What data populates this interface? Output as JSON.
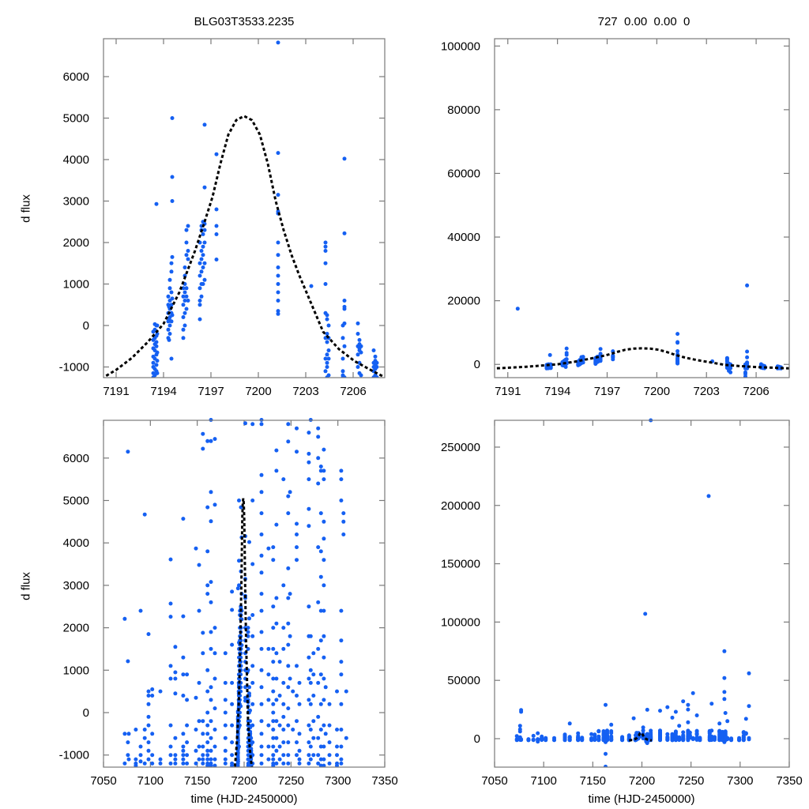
{
  "chart_data": {
    "type": "scatter",
    "title": "BLG03T3533.2235",
    "subtitle": "727  0.00  0.00  0",
    "ylabel": "d flux",
    "xlabel": "time (HJD-2450000)",
    "colors": {
      "points": "#1560f2",
      "model": "#000000",
      "frame": "#7a7a7a"
    },
    "model_curve": [
      [
        7187,
        -1500
      ],
      [
        7188,
        -1380
      ],
      [
        7189,
        -1250
      ],
      [
        7190.2,
        -1250
      ],
      [
        7191,
        -1070
      ],
      [
        7192,
        -780
      ],
      [
        7193,
        -400
      ],
      [
        7194,
        40
      ],
      [
        7195,
        800
      ],
      [
        7196,
        1810
      ],
      [
        7196.6,
        2500
      ],
      [
        7197.1,
        3100
      ],
      [
        7197.6,
        3900
      ],
      [
        7198.1,
        4600
      ],
      [
        7198.6,
        4950
      ],
      [
        7199.1,
        5050
      ],
      [
        7199.6,
        4950
      ],
      [
        7200.1,
        4600
      ],
      [
        7200.6,
        3900
      ],
      [
        7201.1,
        3000
      ],
      [
        7201.6,
        2300
      ],
      [
        7202.1,
        1700
      ],
      [
        7202.6,
        1200
      ],
      [
        7203.1,
        750
      ],
      [
        7204.1,
        -150
      ],
      [
        7205.1,
        -570
      ],
      [
        7206.1,
        -860
      ],
      [
        7207.1,
        -1070
      ],
      [
        7208,
        -1250
      ],
      [
        7209,
        -1350
      ],
      [
        7210,
        -1450
      ]
    ],
    "observations": [
      {
        "t": 7072.7,
        "flux": [
          -1200,
          -500,
          2210
        ]
      },
      {
        "t": 7076,
        "flux": [
          6150,
          1210,
          -700,
          -1000,
          8000,
          11000
        ]
      },
      {
        "t": 7077,
        "flux": [
          24500,
          23000,
          -500,
          -1100
        ]
      },
      {
        "t": 7084.5,
        "flux": [
          -1100,
          -1200,
          -1250,
          -400
        ]
      },
      {
        "t": 7089.6,
        "flux": [
          2400,
          -1000,
          -1150,
          -800
        ]
      },
      {
        "t": 7094,
        "flux": [
          4670,
          -600,
          -400,
          -1200,
          -2500
        ]
      },
      {
        "t": 7098,
        "flux": [
          1850,
          500,
          -900,
          -1100,
          -700,
          -300,
          -100,
          200,
          400
        ]
      },
      {
        "t": 7102,
        "flux": [
          550,
          400,
          -1000,
          -1200,
          -500
        ]
      },
      {
        "t": 7110.7,
        "flux": [
          500,
          -1100,
          -1200
        ]
      },
      {
        "t": 7121.6,
        "flux": [
          3610,
          2570,
          2260,
          1100,
          800,
          -300,
          -800,
          -1000,
          -1200
        ]
      },
      {
        "t": 7126.6,
        "flux": [
          1550,
          950,
          800,
          450,
          -600,
          -1000,
          -1100,
          -1200,
          13000
        ]
      },
      {
        "t": 7135,
        "flux": [
          4570,
          2270,
          1300,
          900,
          400,
          -500,
          -800,
          -900,
          -1000,
          -1100,
          -1200
        ]
      },
      {
        "t": 7139,
        "flux": [
          900,
          300,
          -300,
          -700,
          -1000,
          -1200
        ]
      },
      {
        "t": 7148.6,
        "flux": [
          3870,
          350,
          -400,
          -900,
          -1200
        ]
      },
      {
        "t": 7152,
        "flux": [
          3480,
          2400,
          700,
          -200,
          -800,
          -1100
        ]
      },
      {
        "t": 7156,
        "flux": [
          6570,
          6220,
          1880,
          1400,
          -200,
          -500,
          -800,
          -1000,
          -1100,
          -1200
        ]
      },
      {
        "t": 7161,
        "flux": [
          6400,
          4840,
          3800,
          3000,
          2800,
          1000,
          500,
          0,
          -300,
          -500,
          -700,
          -900,
          -1000,
          -1100,
          -1200,
          -1250
        ]
      },
      {
        "t": 7163,
        "flux": [
          29000,
          -13000,
          -24000,
          -3000
        ]
      },
      {
        "t": 7164.6,
        "flux": [
          6900,
          6400,
          5200,
          4510,
          3080,
          2600,
          1900,
          1500,
          600,
          300,
          -200,
          -600,
          -900,
          -1100,
          -1200,
          -1250
        ]
      },
      {
        "t": 7168.8,
        "flux": [
          6450,
          4900,
          2000,
          1400,
          800,
          100,
          -400,
          -800,
          -1100,
          -1250,
          12000
        ]
      },
      {
        "t": 7180,
        "flux": [
          1400,
          700,
          300,
          0,
          -300,
          -600,
          -900,
          -1100,
          -1200
        ]
      },
      {
        "t": 7187,
        "flux": [
          2850,
          2420,
          1600,
          700,
          200,
          -300,
          -700,
          -1000,
          -1200,
          -1250
        ]
      },
      {
        "t": 7191.6,
        "flux": [
          17500
        ]
      },
      {
        "t": 7193.35,
        "flux": [
          -1250,
          -1150,
          -1000,
          -900,
          -750,
          -550,
          -350,
          -150
        ]
      },
      {
        "t": 7193.45,
        "flux": [
          -1200,
          -1050,
          -800,
          -600,
          -450,
          -300,
          -100,
          30
        ]
      },
      {
        "t": 7193.55,
        "flux": [
          -1100,
          -950,
          -700,
          -500,
          -400,
          -250,
          0,
          2930
        ]
      },
      {
        "t": 7193.6,
        "flux": [
          -1150,
          -850,
          -650,
          -200,
          0
        ]
      },
      {
        "t": 7194.3,
        "flux": [
          -300,
          -100,
          100,
          300,
          500,
          700
        ]
      },
      {
        "t": 7194.35,
        "flux": [
          -350,
          150,
          450
        ]
      },
      {
        "t": 7194.4,
        "flux": [
          -200,
          0,
          200,
          400,
          600,
          900,
          1100
        ]
      },
      {
        "t": 7194.5,
        "flux": [
          -800,
          100,
          300,
          500,
          800,
          1300,
          1500
        ]
      },
      {
        "t": 7194.55,
        "flux": [
          250,
          650,
          1650,
          3000,
          3580,
          5000
        ]
      },
      {
        "t": 7195.25,
        "flux": [
          -300,
          -100,
          200,
          500,
          700,
          900
        ]
      },
      {
        "t": 7195.35,
        "flux": [
          0,
          300,
          600,
          800,
          1000,
          1200,
          1400
        ]
      },
      {
        "t": 7195.45,
        "flux": [
          400,
          700,
          900,
          1700,
          2000,
          2300
        ]
      },
      {
        "t": 7195.55,
        "flux": [
          600,
          1600,
          1800,
          2400
        ]
      },
      {
        "t": 7196.3,
        "flux": [
          150,
          500,
          600,
          900,
          1200,
          1500,
          2000
        ]
      },
      {
        "t": 7196.4,
        "flux": [
          700,
          1000,
          1300,
          1600,
          1800,
          2300,
          2400
        ]
      },
      {
        "t": 7196.5,
        "flux": [
          1000,
          1400,
          1700,
          1900,
          2200,
          2500
        ]
      },
      {
        "t": 7196.6,
        "flux": [
          1100,
          1500,
          2000,
          2300,
          2450,
          3330,
          4840
        ]
      },
      {
        "t": 7197.35,
        "flux": [
          1590,
          2200,
          2400,
          2800,
          4130
        ]
      },
      {
        "t": 7201.25,
        "flux": [
          280,
          350,
          600,
          800,
          1000,
          1200,
          1400,
          1700,
          2000,
          2700,
          2750,
          3150,
          4160,
          6820,
          7000,
          9600
        ]
      },
      {
        "t": 7203.35,
        "flux": [
          950,
          107000
        ]
      },
      {
        "t": 7204.25,
        "flux": [
          1000,
          1500,
          1800,
          1900,
          2000,
          300,
          -300,
          -800,
          -1100
        ]
      },
      {
        "t": 7204.35,
        "flux": [
          250,
          150,
          -200,
          -400,
          -700,
          -900,
          -1000,
          -1250,
          -2000
        ]
      },
      {
        "t": 7204.45,
        "flux": [
          0,
          -300,
          -600,
          -800,
          -1200,
          -2500
        ]
      },
      {
        "t": 7205.35,
        "flux": [
          0,
          -300,
          -800,
          -1100,
          -1200,
          -1250,
          -2500,
          -3000,
          -3800
        ]
      },
      {
        "t": 7205.45,
        "flux": [
          2220,
          4020,
          400,
          450,
          600,
          50,
          -500,
          -1250,
          24800
        ]
      },
      {
        "t": 7206.3,
        "flux": [
          50,
          -200,
          -500,
          -700,
          -1000
        ]
      },
      {
        "t": 7206.4,
        "flux": [
          -350,
          -450,
          -550,
          -600,
          -900,
          -1150
        ]
      },
      {
        "t": 7206.5,
        "flux": [
          -500,
          -650,
          -1200
        ]
      },
      {
        "t": 7207.3,
        "flux": [
          -600,
          -900,
          -1000,
          -1100,
          -1250
        ]
      },
      {
        "t": 7207.4,
        "flux": [
          -750,
          -850,
          -950,
          -1050,
          -1200
        ]
      },
      {
        "t": 7207.5,
        "flux": [
          -900,
          -1000,
          -1250
        ]
      },
      {
        "t": 7209,
        "flux": [
          273000,
          6800,
          5000,
          3500,
          2300,
          1800,
          1100,
          700,
          200,
          -300,
          -700,
          -1000,
          -1200
        ]
      },
      {
        "t": 7218.5,
        "flux": [
          6900,
          6800,
          5600,
          5200,
          4700,
          4200,
          3700,
          3300,
          2800,
          2400,
          1900,
          1500,
          1000,
          600,
          200,
          -200,
          -500,
          -800,
          -1000,
          -1200,
          24000
        ]
      },
      {
        "t": 7226,
        "flux": [
          3870,
          1500,
          900,
          300,
          -300,
          -800,
          -1100,
          27000
        ]
      },
      {
        "t": 7231,
        "flux": [
          3900,
          3600,
          2500,
          2000,
          1500,
          1200,
          800,
          500,
          200,
          0,
          -200,
          -400,
          -600,
          -800,
          -1000,
          -1100,
          -1200,
          -1250,
          18000
        ]
      },
      {
        "t": 7234.5,
        "flux": [
          6180,
          5700,
          4430,
          2700,
          2100,
          1400,
          800,
          300,
          -200,
          -600,
          -900,
          -1200,
          23000
        ]
      },
      {
        "t": 7238,
        "flux": [
          1200,
          400,
          -300,
          -800,
          -1100,
          11000
        ]
      },
      {
        "t": 7242,
        "flux": [
          5500,
          3000,
          2000,
          1500,
          700,
          200,
          -100,
          -400,
          -700,
          -1000,
          -1200,
          32000
        ]
      },
      {
        "t": 7247,
        "flux": [
          6800,
          6390,
          5100,
          4700,
          3400,
          2700,
          2100,
          1600,
          1100,
          600,
          100,
          -300,
          -700,
          -1000,
          -1200,
          29000,
          25000,
          14000
        ]
      },
      {
        "t": 7249,
        "flux": [
          5200,
          2800,
          1800,
          800
        ]
      },
      {
        "t": 7252,
        "flux": [
          39000,
          500,
          -400
        ]
      },
      {
        "t": 7256,
        "flux": [
          6700,
          6150,
          4450,
          4200,
          3900,
          3600,
          1100,
          400,
          -200,
          -700,
          -1000,
          20000
        ]
      },
      {
        "t": 7259,
        "flux": [
          700,
          200,
          -500,
          -900,
          -1100,
          -1200
        ]
      },
      {
        "t": 7268,
        "flux": [
          208000
        ]
      },
      {
        "t": 7269,
        "flux": [
          6600,
          6100,
          5900,
          5500,
          4800,
          4400,
          2500,
          1800,
          1300,
          800,
          300,
          -300,
          -700,
          -1000,
          -1200
        ]
      },
      {
        "t": 7271,
        "flux": [
          6900,
          1800,
          1000,
          700,
          200,
          -400,
          -800,
          -1100,
          30000
        ]
      },
      {
        "t": 7274,
        "flux": [
          1400,
          900,
          400,
          -200,
          -600,
          -1000
        ]
      },
      {
        "t": 7279,
        "flux": [
          6700,
          6500,
          6000,
          5400,
          3900,
          2600,
          1500,
          700,
          -100,
          -600,
          -1000,
          -1200,
          13000
        ]
      },
      {
        "t": 7282,
        "flux": [
          5800,
          5700,
          4700,
          3800,
          3200,
          2400,
          1700,
          900,
          200,
          -400,
          -800,
          -1100,
          -1250
        ]
      },
      {
        "t": 7284,
        "flux": [
          75000,
          52000,
          40000,
          34000,
          -3000
        ]
      },
      {
        "t": 7285,
        "flux": [
          6200,
          5700,
          5500,
          4500,
          4100,
          3600,
          3000,
          2400,
          1800,
          1300,
          800,
          300,
          -300,
          -800,
          -1100,
          -1250,
          22000
        ]
      },
      {
        "t": 7287,
        "flux": [
          15000,
          600,
          -500
        ]
      },
      {
        "t": 7291,
        "flux": [
          200,
          -300,
          -700,
          -1000,
          -1200
        ]
      },
      {
        "t": 7299,
        "flux": [
          500,
          -400,
          -800,
          -1000,
          -1200,
          -1250
        ]
      },
      {
        "t": 7303.6,
        "flux": [
          5700,
          5500,
          5000,
          2400,
          1700,
          1200,
          900,
          200,
          -400,
          -800,
          -1100,
          -1200
        ]
      },
      {
        "t": 7306,
        "flux": [
          4700,
          4500,
          4200,
          17000
        ]
      },
      {
        "t": 7309,
        "flux": [
          56000,
          28000,
          500,
          -600
        ]
      }
    ],
    "panels": [
      {
        "id": "top-left",
        "xlim": [
          7190.2,
          7208
        ],
        "ylim": [
          -1257,
          6914
        ],
        "xticks": [
          7191,
          7194,
          7197,
          7200,
          7203,
          7206
        ],
        "yticks": [
          -1000,
          0,
          1000,
          2000,
          3000,
          4000,
          5000,
          6000
        ]
      },
      {
        "id": "top-right",
        "xlim": [
          7190.2,
          7208
        ],
        "ylim": [
          -4160,
          102300
        ],
        "xticks": [
          7191,
          7194,
          7197,
          7200,
          7203,
          7206
        ],
        "yticks": [
          0,
          20000,
          40000,
          60000,
          80000,
          100000
        ]
      },
      {
        "id": "bottom-left",
        "xlim": [
          7050,
          7350
        ],
        "ylim": [
          -1285,
          6890
        ],
        "xticks": [
          7050,
          7100,
          7150,
          7200,
          7250,
          7300,
          7350
        ],
        "yticks": [
          -1000,
          0,
          1000,
          2000,
          3000,
          4000,
          5000,
          6000
        ]
      },
      {
        "id": "bottom-right",
        "xlim": [
          7050,
          7350
        ],
        "ylim": [
          -24400,
          273000
        ],
        "xticks": [
          7050,
          7100,
          7150,
          7200,
          7250,
          7300,
          7350
        ],
        "yticks": [
          0,
          50000,
          100000,
          150000,
          200000,
          250000
        ]
      }
    ]
  }
}
